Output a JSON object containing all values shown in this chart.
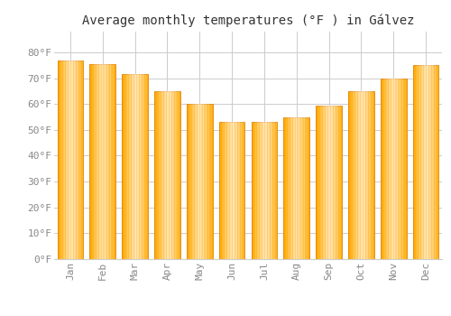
{
  "title": "Average monthly temperatures (°F ) in Gálvez",
  "months": [
    "Jan",
    "Feb",
    "Mar",
    "Apr",
    "May",
    "Jun",
    "Jul",
    "Aug",
    "Sep",
    "Oct",
    "Nov",
    "Dec"
  ],
  "values": [
    77,
    75.5,
    71.5,
    65,
    60,
    53,
    53,
    55,
    59.5,
    65,
    70,
    75
  ],
  "bar_color_main": "#FFAA00",
  "bar_color_edge": "#E08000",
  "background_color": "#FFFFFF",
  "grid_color": "#CCCCCC",
  "ylim": [
    0,
    88
  ],
  "yticks": [
    0,
    10,
    20,
    30,
    40,
    50,
    60,
    70,
    80
  ],
  "ytick_labels": [
    "0°F",
    "10°F",
    "20°F",
    "30°F",
    "40°F",
    "50°F",
    "60°F",
    "70°F",
    "80°F"
  ],
  "title_fontsize": 10,
  "tick_fontsize": 8,
  "tick_color": "#888888",
  "font_family": "monospace",
  "bar_width": 0.8
}
